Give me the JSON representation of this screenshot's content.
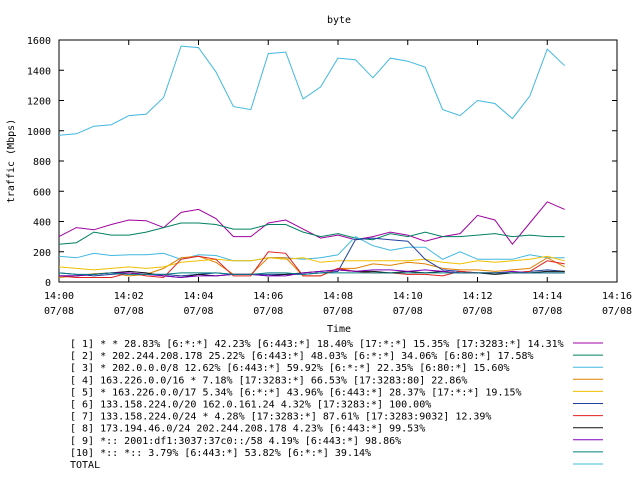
{
  "chart_data": {
    "type": "line",
    "title": "byte",
    "xlabel": "Time",
    "ylabel": "traffic (Mbps)",
    "ylim": [
      0,
      1600
    ],
    "yticks": [
      0,
      200,
      400,
      600,
      800,
      1000,
      1200,
      1400,
      1600
    ],
    "xlim": [
      "14:00",
      "14:16"
    ],
    "xticks": [
      {
        "time": "14:00",
        "date": "07/08"
      },
      {
        "time": "14:02",
        "date": "07/08"
      },
      {
        "time": "14:04",
        "date": "07/08"
      },
      {
        "time": "14:06",
        "date": "07/08"
      },
      {
        "time": "14:08",
        "date": "07/08"
      },
      {
        "time": "14:10",
        "date": "07/08"
      },
      {
        "time": "14:12",
        "date": "07/08"
      },
      {
        "time": "14:14",
        "date": "07/08"
      },
      {
        "time": "14:16",
        "date": "07/08"
      }
    ],
    "grid": false,
    "legend_position": "bottom",
    "x": [
      "14:00:00",
      "14:00:30",
      "14:01:00",
      "14:01:30",
      "14:02:00",
      "14:02:30",
      "14:03:00",
      "14:03:30",
      "14:04:00",
      "14:04:30",
      "14:05:00",
      "14:05:30",
      "14:06:00",
      "14:06:30",
      "14:07:00",
      "14:07:30",
      "14:08:00",
      "14:08:30",
      "14:09:00",
      "14:09:30",
      "14:10:00",
      "14:10:30",
      "14:11:00",
      "14:11:30",
      "14:12:00",
      "14:12:30",
      "14:13:00",
      "14:13:30",
      "14:14:00",
      "14:14:30"
    ],
    "series": [
      {
        "name": "[ 1] * * 28.83%  [6:*:*] 42.23% [6:443:*] 18.40% [17:*:*] 15.35% [17:3283:*] 14.31%",
        "color": "#a000a0",
        "values": [
          300,
          360,
          345,
          380,
          410,
          405,
          360,
          460,
          480,
          420,
          300,
          300,
          390,
          410,
          350,
          290,
          310,
          280,
          300,
          330,
          310,
          270,
          300,
          320,
          440,
          410,
          250,
          390,
          530,
          480
        ]
      },
      {
        "name": "[ 2] * 202.244.208.178 25.22%  [6:443:*] 48.03% [6:*:*] 34.06% [6:80:*] 17.58%",
        "color": "#008060",
        "values": [
          250,
          260,
          330,
          310,
          310,
          330,
          360,
          390,
          390,
          380,
          350,
          350,
          380,
          380,
          330,
          300,
          320,
          290,
          280,
          320,
          300,
          330,
          300,
          300,
          310,
          320,
          300,
          310,
          300,
          300
        ]
      },
      {
        "name": "[ 3] * 202.0.0.0/8 12.62%  [6:443:*] 59.92% [6:*:*] 22.35% [6:80:*] 15.60%",
        "color": "#40b8e0",
        "values": [
          170,
          160,
          190,
          175,
          180,
          180,
          190,
          150,
          180,
          175,
          140,
          140,
          160,
          160,
          150,
          160,
          180,
          300,
          240,
          210,
          230,
          230,
          150,
          200,
          150,
          150,
          150,
          180,
          160,
          160
        ]
      },
      {
        "name": "[ 4] 163.226.0.0/16 * 7.18%  [17:3283:*] 66.53% [17:3283:80] 22.86%",
        "color": "#e08000",
        "values": [
          30,
          40,
          55,
          60,
          40,
          50,
          90,
          160,
          170,
          130,
          50,
          50,
          160,
          160,
          40,
          40,
          90,
          90,
          120,
          110,
          130,
          120,
          90,
          80,
          80,
          70,
          80,
          90,
          160,
          100
        ]
      },
      {
        "name": "[ 5] * 163.226.0.0/17 5.34%  [6:*:*] 43.96% [6:443:*] 28.37% [17:*:*] 19.15%",
        "color": "#f0c000",
        "values": [
          100,
          90,
          80,
          90,
          100,
          90,
          100,
          130,
          140,
          150,
          140,
          140,
          160,
          150,
          160,
          130,
          140,
          140,
          140,
          140,
          140,
          150,
          130,
          120,
          140,
          130,
          140,
          150,
          170,
          140
        ]
      },
      {
        "name": "[ 6] 133.158.224.0/20 162.0.161.24 4.32%  [17:3283:*] 100.00%",
        "color": "#2040a0",
        "values": [
          60,
          50,
          40,
          50,
          60,
          50,
          50,
          40,
          50,
          60,
          50,
          50,
          50,
          50,
          50,
          60,
          70,
          280,
          290,
          280,
          270,
          150,
          80,
          70,
          60,
          60,
          60,
          70,
          80,
          70
        ]
      },
      {
        "name": "[ 7] 133.158.224.0/24 * 4.28%  [17:3283:*] 87.61% [17:3283:9032] 12.39%",
        "color": "#e02020",
        "values": [
          40,
          30,
          30,
          30,
          60,
          40,
          30,
          150,
          170,
          150,
          40,
          40,
          200,
          190,
          40,
          40,
          90,
          70,
          60,
          60,
          50,
          50,
          40,
          70,
          60,
          60,
          60,
          70,
          140,
          120
        ]
      },
      {
        "name": "[ 8] 173.194.46.0/24 202.244.208.178 4.23%  [6:443:*] 99.53%",
        "color": "#101010",
        "values": [
          40,
          40,
          50,
          60,
          70,
          60,
          40,
          30,
          50,
          40,
          50,
          50,
          40,
          50,
          60,
          70,
          80,
          70,
          70,
          60,
          70,
          60,
          70,
          60,
          60,
          50,
          60,
          60,
          70,
          70
        ]
      },
      {
        "name": "[ 9] *:: 2001:df1:3037:37c0::/58 4.19%  [6:443:*] 98.86%",
        "color": "#8000c0",
        "values": [
          40,
          40,
          50,
          60,
          60,
          50,
          40,
          30,
          40,
          40,
          50,
          50,
          40,
          40,
          60,
          70,
          80,
          70,
          80,
          80,
          70,
          80,
          70,
          60,
          60,
          60,
          70,
          60,
          60,
          60
        ]
      },
      {
        "name": "[10] *:: *:: 3.79%  [6:443:*] 53.82% [6:*:*] 39.14%",
        "color": "#008080",
        "values": [
          60,
          50,
          50,
          60,
          50,
          50,
          50,
          60,
          60,
          60,
          50,
          50,
          60,
          60,
          50,
          60,
          60,
          60,
          60,
          60,
          60,
          60,
          60,
          60,
          60,
          60,
          60,
          60,
          60,
          60
        ]
      },
      {
        "name": "TOTAL",
        "color": "#40b8e0",
        "values": [
          970,
          980,
          1030,
          1040,
          1100,
          1110,
          1220,
          1560,
          1550,
          1390,
          1160,
          1140,
          1510,
          1520,
          1210,
          1290,
          1480,
          1470,
          1350,
          1480,
          1460,
          1420,
          1140,
          1100,
          1200,
          1180,
          1080,
          1230,
          1540,
          1430
        ]
      }
    ]
  }
}
